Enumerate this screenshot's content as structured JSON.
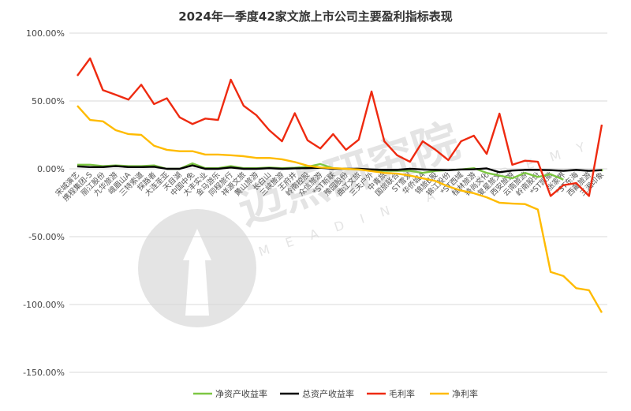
{
  "chart_data": {
    "type": "line",
    "title": "2024年一季度42家文旅上市公司主要盈利指标表现",
    "ylim": [
      -150,
      100
    ],
    "yticks": [
      "100.00%",
      "50.00%",
      "0.00%",
      "-50.00%",
      "-100.00%",
      "-150.00%"
    ],
    "ytick_values": [
      100,
      50,
      0,
      -50,
      -100,
      -150
    ],
    "grid": true,
    "legend_position": "bottom",
    "categories": [
      "宋城演艺",
      "携程集团-S",
      "丽江股份",
      "九华旅游",
      "峨眉山A",
      "三特索道",
      "探路者",
      "大连圣亚",
      "天目湖",
      "中国中免",
      "大丰实业",
      "金马游乐",
      "同程旅行",
      "祥源文旅",
      "黄山旅游",
      "长白山",
      "三峡旅游",
      "王府井",
      "岭南控股",
      "众信旅游",
      "*ST新联",
      "豫园股份",
      "曲江文旅",
      "三夫户外",
      "中青旅",
      "国旅联合",
      "ST雪发",
      "华侨城A",
      "锦旅B股",
      "锦江股份",
      "*ST西域",
      "桂林旅游",
      "锋尚文化",
      "复星旅文",
      "西安旅游",
      "云南旅游",
      "岭南股份",
      "*ST凯撒",
      "张家界",
      "*ST东海",
      "西藏旅游",
      "三湘印象"
    ],
    "series": [
      {
        "name": "净资产收益率",
        "color": "#7dc743",
        "values": [
          3,
          3,
          2,
          2.5,
          2,
          2,
          2.5,
          0,
          0,
          4,
          0.5,
          0.5,
          2,
          0.5,
          0.5,
          1,
          0.5,
          0.8,
          1.5,
          3.5,
          0.5,
          0,
          -0.5,
          -0.8,
          -1.5,
          -1.5,
          -1.5,
          -3,
          -1.5,
          -1,
          -0.5,
          0.5,
          -3,
          -5,
          -7,
          -3,
          -6,
          -4,
          -8,
          null,
          null,
          -1
        ]
      },
      {
        "name": "总资产收益率",
        "color": "#000000",
        "values": [
          1.8,
          1.3,
          1.3,
          2,
          1.3,
          1.3,
          1.5,
          0,
          0,
          2.5,
          0,
          0,
          1,
          0,
          0,
          0.5,
          0,
          0.3,
          0.5,
          0.8,
          0,
          0,
          0,
          -0.5,
          -0.8,
          -0.8,
          0,
          -0.5,
          -0.8,
          -1,
          -0.5,
          -0.3,
          0.3,
          -2.5,
          -1.3,
          -0.8,
          -0.8,
          -1,
          -1.5,
          -0.8,
          -1.5,
          -1
        ]
      },
      {
        "name": "毛利率",
        "color": "#ee2a10",
        "values": [
          68.6,
          81.4,
          58,
          54.6,
          51,
          62,
          47.7,
          52,
          38,
          33,
          37,
          36,
          65.7,
          46.5,
          39.5,
          28.5,
          20.3,
          41,
          21,
          15,
          25.6,
          14,
          21.5,
          57,
          20.3,
          10,
          5.2,
          20.3,
          14,
          6.4,
          20.3,
          24.4,
          11,
          40.7,
          3,
          6,
          5.2,
          -20,
          -12,
          -10.5,
          -20,
          32.5
        ]
      },
      {
        "name": "净利率",
        "color": "#ffbb00",
        "values": [
          46.5,
          36,
          35,
          28.5,
          25.6,
          25,
          17,
          14,
          13,
          13,
          10.5,
          10.5,
          10,
          9.3,
          8,
          8,
          7,
          5,
          2.3,
          1,
          0.5,
          0,
          -0.5,
          -1.7,
          -3,
          -3.5,
          -5,
          -7,
          -9,
          -13,
          -16,
          -18,
          -21,
          -25,
          -25.6,
          -26,
          -30,
          -76,
          -79,
          -88,
          -89.5,
          -106
        ]
      }
    ]
  },
  "watermark": {
    "cn": "迈点研究院",
    "en": "MEADIN ACADEMY"
  }
}
